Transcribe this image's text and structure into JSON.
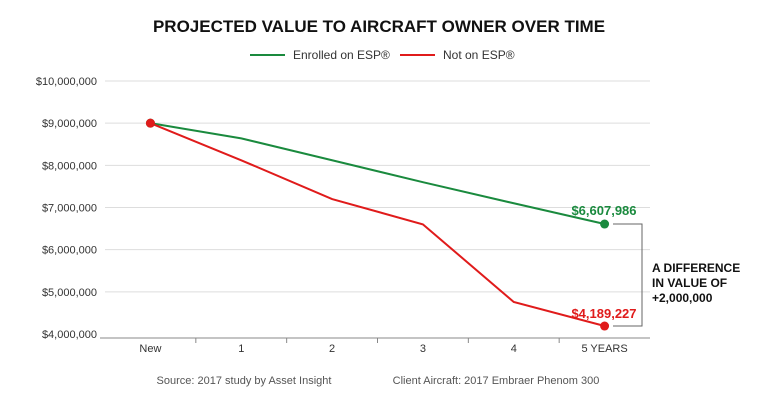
{
  "chart_data": {
    "type": "line",
    "title": "PROJECTED VALUE TO AIRCRAFT OWNER OVER TIME",
    "categories": [
      "New",
      "1",
      "2",
      "3",
      "4",
      "5 YEARS"
    ],
    "series": [
      {
        "name": "Enrolled on ESP®",
        "color": "#1a8a3e",
        "values": [
          9000000,
          8640000,
          8120000,
          7600000,
          7100000,
          6607986
        ]
      },
      {
        "name": "Not on ESP®",
        "color": "#e01b1b",
        "values": [
          9000000,
          8120000,
          7200000,
          6600000,
          4760000,
          4189227
        ]
      }
    ],
    "yticks": [
      "$4,000,000",
      "$5,000,000",
      "$6,000,000",
      "$7,000,000",
      "$8,000,000",
      "$9,000,000",
      "$10,000,000"
    ],
    "ylim": [
      4000000,
      10000000
    ],
    "grid": true,
    "legend": "top-center",
    "data_labels": [
      "$6,607,986",
      "$4,189,227"
    ],
    "annotation": [
      "A DIFFERENCE",
      "IN VALUE OF",
      "+2,000,000"
    ],
    "footnotes": [
      "Source: 2017 study by Asset Insight",
      "Client Aircraft: 2017 Embraer Phenom 300"
    ]
  }
}
